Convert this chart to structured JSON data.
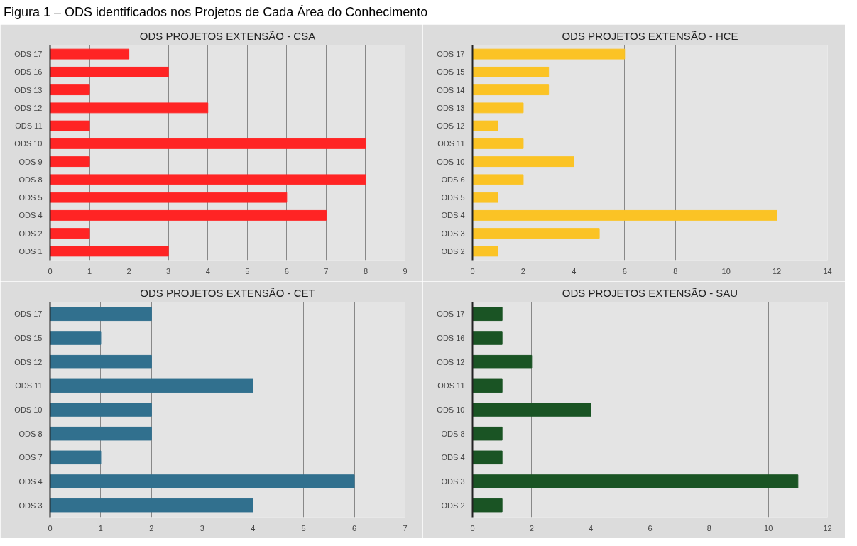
{
  "chart_data": [
    {
      "type": "bar",
      "orientation": "horizontal",
      "title": "ODS PROJETOS EXTENSÃO - CSA",
      "annotations": [
        "Figura 1 – ODS identificados nos Projetos de Cada Área do Conhecimento"
      ],
      "categories": [
        "ODS 17",
        "ODS 16",
        "ODS 13",
        "ODS 12",
        "ODS 11",
        "ODS 10",
        "ODS 9",
        "ODS 8",
        "ODS 5",
        "ODS 4",
        "ODS 2",
        "ODS 1"
      ],
      "values": [
        2,
        3,
        1,
        4,
        1,
        8,
        1,
        8,
        6,
        7,
        1,
        3
      ],
      "color": "#ff2424",
      "xlim": [
        0,
        9
      ],
      "xticks": [
        0,
        1,
        2,
        3,
        4,
        5,
        6,
        7,
        8,
        9
      ],
      "grid": "x"
    },
    {
      "type": "bar",
      "orientation": "horizontal",
      "title": "ODS PROJETOS EXTENSÃO - HCE",
      "categories": [
        "ODS 17",
        "ODS 15",
        "ODS 14",
        "ODS 13",
        "ODS 12",
        "ODS 11",
        "ODS 10",
        "ODS 6",
        "ODS 5",
        "ODS 4",
        "ODS 3",
        "ODS 2"
      ],
      "values": [
        6,
        3,
        3,
        2,
        1,
        2,
        4,
        2,
        1,
        12,
        5,
        1
      ],
      "color": "#fbc325",
      "xlim": [
        0,
        14
      ],
      "xticks": [
        0,
        2,
        4,
        6,
        8,
        10,
        12,
        14
      ],
      "grid": "x"
    },
    {
      "type": "bar",
      "orientation": "horizontal",
      "title": "ODS PROJETOS EXTENSÃO - CET",
      "categories": [
        "ODS 17",
        "ODS 15",
        "ODS 12",
        "ODS 11",
        "ODS 10",
        "ODS 8",
        "ODS 7",
        "ODS 4",
        "ODS 3"
      ],
      "values": [
        2,
        1,
        2,
        4,
        2,
        2,
        1,
        6,
        4
      ],
      "color": "#31708e",
      "xlim": [
        0,
        7
      ],
      "xticks": [
        0,
        1,
        2,
        3,
        4,
        5,
        6,
        7
      ],
      "grid": "x"
    },
    {
      "type": "bar",
      "orientation": "horizontal",
      "title": "ODS PROJETOS EXTENSÃO - SAU",
      "categories": [
        "ODS 17",
        "ODS 16",
        "ODS 12",
        "ODS 11",
        "ODS 10",
        "ODS 8",
        "ODS 4",
        "ODS 3",
        "ODS 2"
      ],
      "values": [
        1,
        1,
        2,
        1,
        4,
        1,
        1,
        11,
        1
      ],
      "color": "#1a5424",
      "xlim": [
        0,
        12
      ],
      "xticks": [
        0,
        2,
        4,
        6,
        8,
        10,
        12
      ],
      "grid": "x"
    }
  ]
}
